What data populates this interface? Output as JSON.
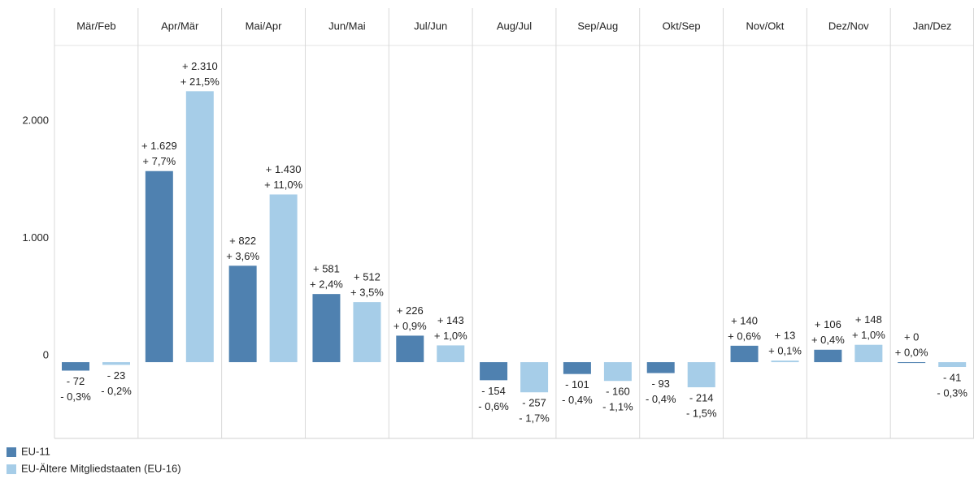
{
  "chart_data": {
    "type": "bar",
    "categories": [
      "Mär/Feb",
      "Apr/Mär",
      "Mai/Apr",
      "Jun/Mai",
      "Jul/Jun",
      "Aug/Jul",
      "Sep/Aug",
      "Okt/Sep",
      "Nov/Okt",
      "Dez/Nov",
      "Jan/Dez"
    ],
    "series": [
      {
        "name": "EU-11",
        "color": "#4f81b0",
        "values": [
          -72,
          1629,
          822,
          581,
          226,
          -154,
          -101,
          -93,
          140,
          106,
          0
        ],
        "value_labels": [
          "- 72",
          "+ 1.629",
          "+ 822",
          "+ 581",
          "+ 226",
          "- 154",
          "- 101",
          "- 93",
          "+ 140",
          "+ 106",
          "+ 0"
        ],
        "percent_labels": [
          "- 0,3%",
          "+ 7,7%",
          "+ 3,6%",
          "+ 2,4%",
          "+ 0,9%",
          "- 0,6%",
          "- 0,4%",
          "- 0,4%",
          "+ 0,6%",
          "+ 0,4%",
          "+ 0,0%"
        ]
      },
      {
        "name": "EU-Ältere Mitgliedstaaten (EU-16)",
        "color": "#a6cde8",
        "values": [
          -23,
          2310,
          1430,
          512,
          143,
          -257,
          -160,
          -214,
          13,
          148,
          -41
        ],
        "value_labels": [
          "- 23",
          "+ 2.310",
          "+ 1.430",
          "+ 512",
          "+ 143",
          "- 257",
          "- 160",
          "- 214",
          "+ 13",
          "+ 148",
          "- 41"
        ],
        "percent_labels": [
          "- 0,2%",
          "+ 21,5%",
          "+ 11,0%",
          "+ 3,5%",
          "+ 1,0%",
          "- 1,7%",
          "- 1,1%",
          "- 1,5%",
          "+ 0,1%",
          "+ 1,0%",
          "- 0,3%"
        ]
      }
    ],
    "ylim": [
      -650,
      2700
    ],
    "yticks": [
      {
        "value": 0,
        "label": "0"
      },
      {
        "value": 1000,
        "label": "1.000"
      },
      {
        "value": 2000,
        "label": "2.000"
      }
    ],
    "legend": "bottom-left"
  }
}
